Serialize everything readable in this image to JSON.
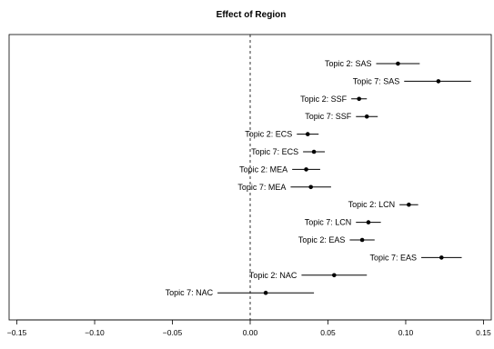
{
  "chart_data": {
    "type": "forest",
    "title": "Effect of Region",
    "xlabel": "",
    "ylabel": "",
    "xlim": [
      -0.155,
      0.155
    ],
    "x_ticks": [
      -0.15,
      -0.1,
      -0.05,
      0.0,
      0.05,
      0.1,
      0.15
    ],
    "x_tick_labels": [
      "−0.15",
      "−0.10",
      "−0.05",
      "0.00",
      "0.05",
      "0.10",
      "0.15"
    ],
    "reference_line": 0,
    "grid": false,
    "points": [
      {
        "label": "Topic 2: SAS",
        "estimate": 0.095,
        "ci": [
          0.081,
          0.109
        ]
      },
      {
        "label": "Topic 7: SAS",
        "estimate": 0.121,
        "ci": [
          0.099,
          0.142
        ]
      },
      {
        "label": "Topic 2: SSF",
        "estimate": 0.07,
        "ci": [
          0.065,
          0.075
        ]
      },
      {
        "label": "Topic 7: SSF",
        "estimate": 0.075,
        "ci": [
          0.068,
          0.082
        ]
      },
      {
        "label": "Topic 2: ECS",
        "estimate": 0.037,
        "ci": [
          0.03,
          0.044
        ]
      },
      {
        "label": "Topic 7: ECS",
        "estimate": 0.041,
        "ci": [
          0.034,
          0.048
        ]
      },
      {
        "label": "Topic 2: MEA",
        "estimate": 0.036,
        "ci": [
          0.027,
          0.045
        ]
      },
      {
        "label": "Topic 7: MEA",
        "estimate": 0.039,
        "ci": [
          0.026,
          0.052
        ]
      },
      {
        "label": "Topic 2: LCN",
        "estimate": 0.102,
        "ci": [
          0.096,
          0.108
        ]
      },
      {
        "label": "Topic 7: LCN",
        "estimate": 0.076,
        "ci": [
          0.068,
          0.084
        ]
      },
      {
        "label": "Topic 2: EAS",
        "estimate": 0.072,
        "ci": [
          0.064,
          0.08
        ]
      },
      {
        "label": "Topic 7: EAS",
        "estimate": 0.123,
        "ci": [
          0.11,
          0.136
        ]
      },
      {
        "label": "Topic 2: NAC",
        "estimate": 0.054,
        "ci": [
          0.033,
          0.075
        ]
      },
      {
        "label": "Topic 7: NAC",
        "estimate": 0.01,
        "ci": [
          -0.021,
          0.041
        ]
      }
    ]
  }
}
